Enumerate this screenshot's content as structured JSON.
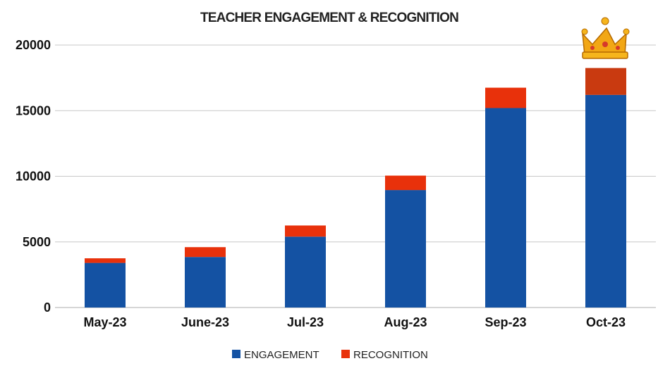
{
  "chart_data": {
    "type": "bar",
    "stacked": true,
    "title": "TEACHER ENGAGEMENT & RECOGNITION",
    "categories": [
      "May-23",
      "June-23",
      "Jul-23",
      "Aug-23",
      "Sep-23",
      "Oct-23"
    ],
    "series": [
      {
        "name": "ENGAGEMENT",
        "color": "#1452a3",
        "values": [
          3400,
          3850,
          5400,
          8950,
          15200,
          16200
        ]
      },
      {
        "name": "RECOGNITION",
        "color": "#e8310b",
        "values": [
          350,
          750,
          850,
          1100,
          1550,
          2050
        ]
      }
    ],
    "highlight": {
      "category": "Oct-23",
      "icon": "crown-icon",
      "recognition_color": "#c93a10"
    },
    "ylim": [
      0,
      20000
    ],
    "yticks": [
      "0",
      "5000",
      "10000",
      "15000",
      "20000"
    ],
    "grid": true,
    "legend": "bottom"
  }
}
